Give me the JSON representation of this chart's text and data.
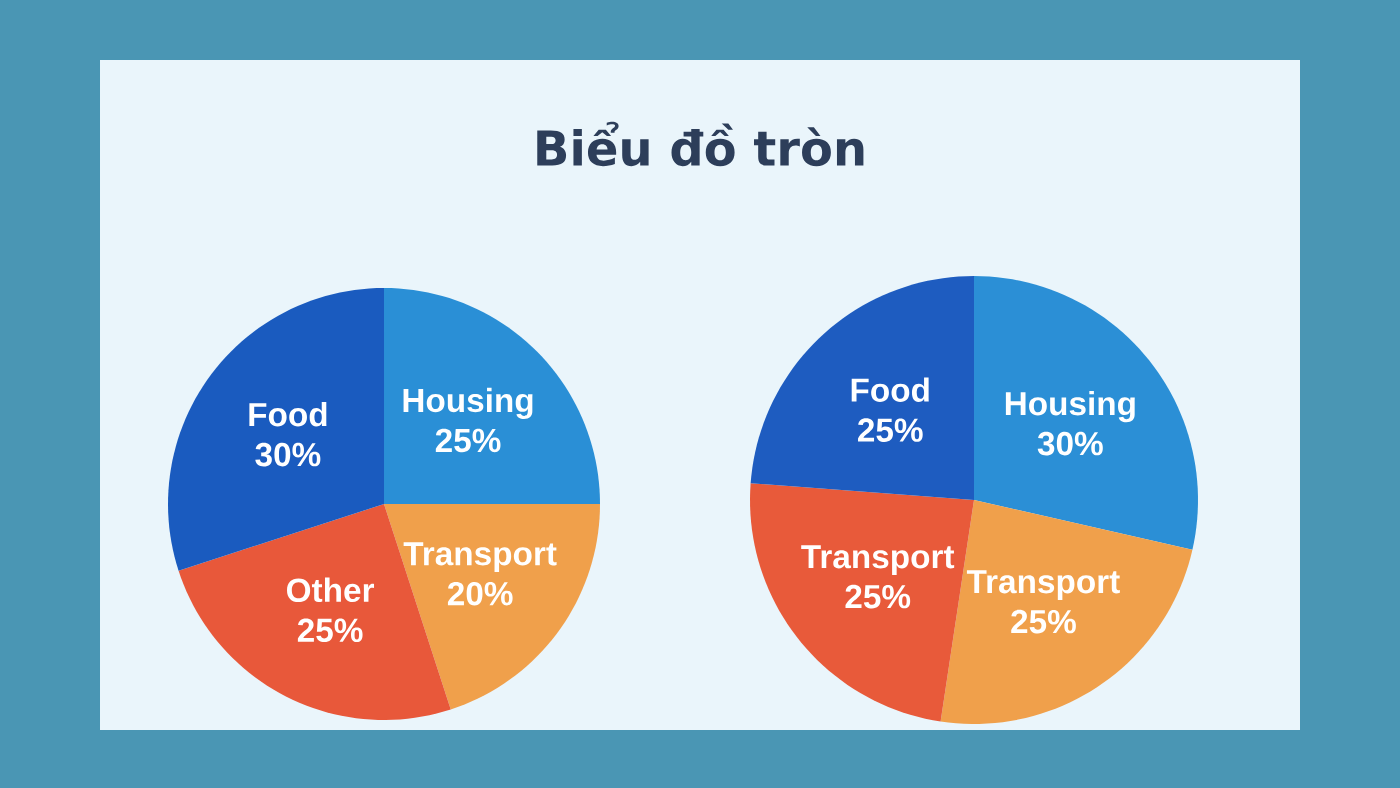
{
  "chart_data": [
    {
      "type": "pie",
      "title": "Biểu đồ tròn",
      "categories": [
        "Housing",
        "Transport",
        "Other",
        "Food"
      ],
      "values": [
        25,
        20,
        25,
        30
      ],
      "colors": [
        "#2a8fd6",
        "#f0a04b",
        "#e8583a",
        "#1a5bbf"
      ],
      "value_labels": [
        "25%",
        "20%",
        "25%",
        "30%"
      ]
    },
    {
      "type": "pie",
      "categories": [
        "Housing",
        "Transport",
        "Transport",
        "Food"
      ],
      "values": [
        30,
        25,
        25,
        25
      ],
      "colors": [
        "#2b8fd6",
        "#f0a04b",
        "#e85a3a",
        "#1e5cc0"
      ],
      "value_labels": [
        "30%",
        "25%",
        "25%",
        "25%"
      ]
    }
  ]
}
